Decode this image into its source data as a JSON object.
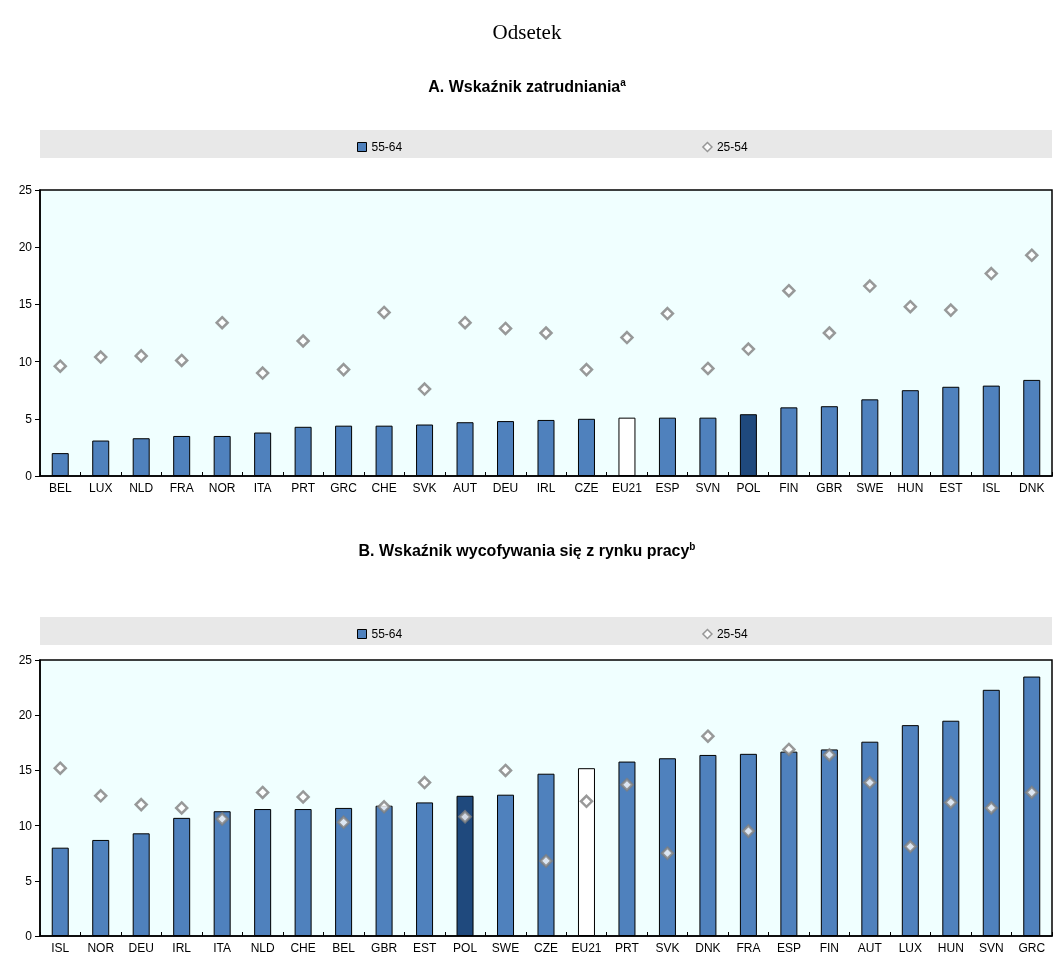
{
  "chart_data": [
    {
      "type": "bar",
      "title": "A. Wskaźnik zatrudniania$^{a}$",
      "annotations": [
        "Odsetek"
      ],
      "categories": [
        "BEL",
        "LUX",
        "NLD",
        "FRA",
        "NOR",
        "ITA",
        "PRT",
        "GRC",
        "CHE",
        "SVK",
        "AUT",
        "DEU",
        "IRL",
        "CZE",
        "EU21",
        "ESP",
        "SVN",
        "POL",
        "FIN",
        "GBR",
        "SWE",
        "HUN",
        "EST",
        "ISL",
        "DNK"
      ],
      "series": [
        {
          "name": "55-64",
          "color": "#4f81bd",
          "colors": [
            "#4f81bd",
            "#4f81bd",
            "#4f81bd",
            "#4f81bd",
            "#4f81bd",
            "#4f81bd",
            "#4f81bd",
            "#4f81bd",
            "#4f81bd",
            "#4f81bd",
            "#4f81bd",
            "#4f81bd",
            "#4f81bd",
            "#4f81bd",
            "#ffffff",
            "#4f81bd",
            "#4f81bd",
            "#1f497d",
            "#4f81bd",
            "#4f81bd",
            "#4f81bd",
            "#4f81bd",
            "#4f81bd",
            "#4f81bd",
            "#4f81bd"
          ],
          "values": [
            2.0,
            3.1,
            3.3,
            3.5,
            3.5,
            3.8,
            4.3,
            4.4,
            4.4,
            4.5,
            4.7,
            4.8,
            4.9,
            5.0,
            5.1,
            5.1,
            5.1,
            5.4,
            6.0,
            6.1,
            6.7,
            7.5,
            7.8,
            7.9,
            8.4
          ]
        },
        {
          "name": "25-54",
          "type": "scatter",
          "marker": "diamond",
          "color": "#808080",
          "x": [
            "BEL",
            "LUX",
            "NLD",
            "FRA",
            "NOR",
            "ITA",
            "PRT",
            "GRC",
            "CHE",
            "SVK",
            "AUT",
            "DEU",
            "IRL",
            "CZE",
            "EU21",
            "ESP",
            "SVN",
            "POL",
            "FIN",
            "GBR",
            "SWE",
            "HUN",
            "EST",
            "ISL",
            "DNK"
          ],
          "values": [
            9.6,
            10.4,
            10.5,
            10.1,
            13.4,
            9.0,
            11.8,
            9.3,
            14.3,
            7.6,
            13.4,
            12.9,
            12.5,
            9.3,
            12.1,
            14.2,
            9.4,
            11.1,
            16.2,
            12.5,
            16.6,
            14.8,
            14.5,
            17.7,
            19.3
          ]
        }
      ],
      "ylim": [
        0,
        25
      ],
      "yticks": [
        0,
        5,
        10,
        15,
        20,
        25
      ],
      "grid": false,
      "legend": "top"
    },
    {
      "type": "bar",
      "title": "B. Wskaźnik wycofywania się z rynku pracy$^{b}$",
      "categories": [
        "ISL",
        "NOR",
        "DEU",
        "IRL",
        "ITA",
        "NLD",
        "CHE",
        "BEL",
        "GBR",
        "EST",
        "POL",
        "SWE",
        "CZE",
        "EU21",
        "PRT",
        "SVK",
        "DNK",
        "FRA",
        "ESP",
        "FIN",
        "AUT",
        "LUX",
        "HUN",
        "SVN",
        "GRC"
      ],
      "series": [
        {
          "name": "55-64",
          "color": "#4f81bd",
          "colors": [
            "#4f81bd",
            "#4f81bd",
            "#4f81bd",
            "#4f81bd",
            "#4f81bd",
            "#4f81bd",
            "#4f81bd",
            "#4f81bd",
            "#4f81bd",
            "#4f81bd",
            "#1f497d",
            "#4f81bd",
            "#4f81bd",
            "#ffffff",
            "#4f81bd",
            "#4f81bd",
            "#4f81bd",
            "#4f81bd",
            "#4f81bd",
            "#4f81bd",
            "#4f81bd",
            "#4f81bd",
            "#4f81bd",
            "#4f81bd",
            "#4f81bd"
          ],
          "values": [
            8.0,
            8.7,
            9.3,
            10.7,
            11.3,
            11.5,
            11.5,
            11.6,
            11.8,
            12.1,
            12.7,
            12.8,
            14.7,
            15.2,
            15.8,
            16.1,
            16.4,
            16.5,
            16.7,
            16.9,
            17.6,
            19.1,
            19.5,
            22.3,
            23.5
          ]
        },
        {
          "name": "25-54",
          "type": "scatter",
          "marker": "diamond",
          "color": "#808080",
          "x": [
            "ISL",
            "NOR",
            "DEU",
            "IRL",
            "ITA",
            "NLD",
            "CHE",
            "BEL",
            "GBR",
            "EST",
            "POL",
            "SWE",
            "CZE",
            "EU21",
            "PRT",
            "SVK",
            "DNK",
            "FRA",
            "ESP",
            "FIN",
            "AUT",
            "LUX",
            "HUN",
            "SVN",
            "GRC"
          ],
          "values": [
            15.2,
            12.7,
            11.9,
            11.6,
            10.6,
            13.0,
            12.6,
            10.3,
            11.7,
            13.9,
            10.8,
            15.0,
            6.8,
            12.2,
            13.7,
            7.5,
            18.1,
            9.5,
            16.9,
            16.4,
            13.9,
            8.1,
            12.1,
            11.6,
            13.0
          ]
        }
      ],
      "ylim": [
        0,
        25
      ],
      "yticks": [
        0,
        5,
        10,
        15,
        20,
        25
      ],
      "grid": false,
      "legend": "top"
    }
  ]
}
